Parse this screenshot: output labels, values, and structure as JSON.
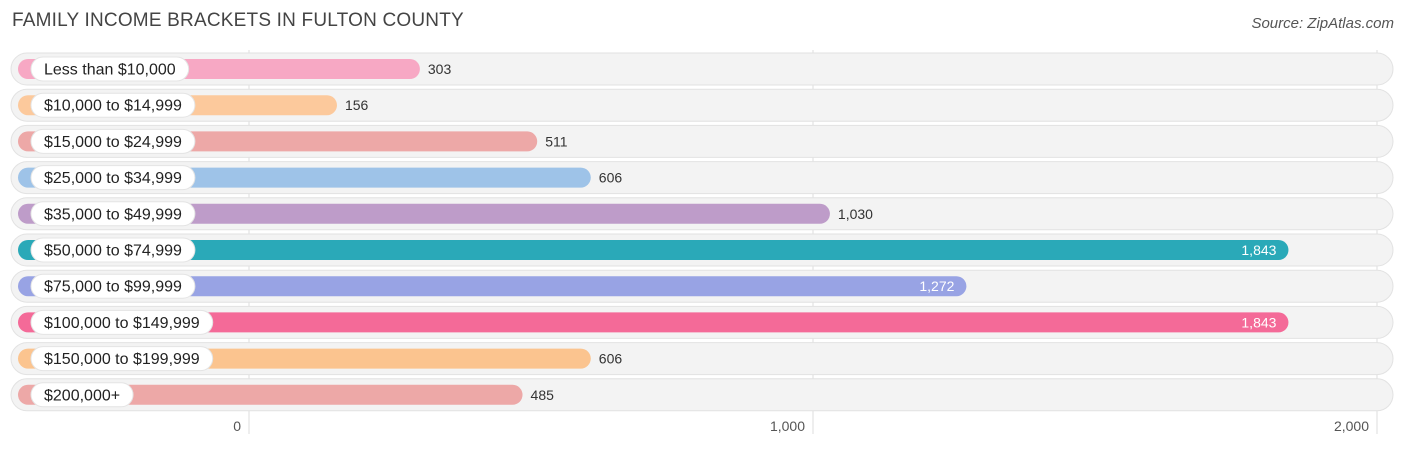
{
  "header": {
    "title": "FAMILY INCOME BRACKETS IN FULTON COUNTY",
    "source": "Source: ZipAtlas.com"
  },
  "chart_data": {
    "type": "bar",
    "orientation": "horizontal",
    "title": "FAMILY INCOME BRACKETS IN FULTON COUNTY",
    "xlabel": "",
    "ylabel": "",
    "xlim": [
      0,
      2000
    ],
    "x_ticks": [
      0,
      1000,
      2000
    ],
    "x_tick_labels": [
      "0",
      "1,000",
      "2,000"
    ],
    "grid": true,
    "categories": [
      "Less than $10,000",
      "$10,000 to $14,999",
      "$15,000 to $24,999",
      "$25,000 to $34,999",
      "$35,000 to $49,999",
      "$50,000 to $74,999",
      "$75,000 to $99,999",
      "$100,000 to $149,999",
      "$150,000 to $199,999",
      "$200,000+"
    ],
    "values": [
      303,
      156,
      511,
      606,
      1030,
      1843,
      1272,
      1843,
      606,
      485
    ],
    "value_labels": [
      "303",
      "156",
      "511",
      "606",
      "1,030",
      "1,843",
      "1,272",
      "1,843",
      "606",
      "485"
    ],
    "colors": [
      "#f7a8c4",
      "#fcc99c",
      "#eda8a7",
      "#9ec3e8",
      "#be9cc9",
      "#2aa9b8",
      "#98a3e4",
      "#f46a98",
      "#fbc48f",
      "#eda8a7"
    ]
  }
}
